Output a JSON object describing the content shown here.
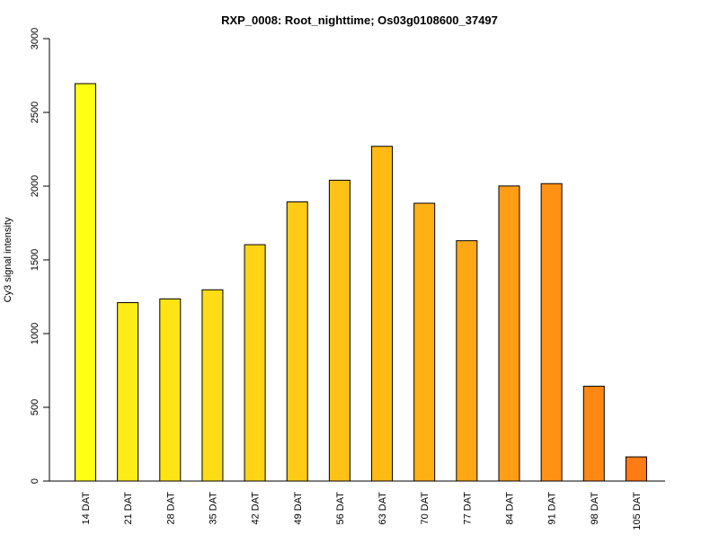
{
  "chart_data": {
    "type": "bar",
    "title": "RXP_0008: Root_nighttime; Os03g0108600_37497",
    "xlabel": "",
    "ylabel": "Cy3 signal intensity",
    "ylim": [
      0,
      3000
    ],
    "yticks": [
      "0",
      "500",
      "1000",
      "1500",
      "2000",
      "2500",
      "3000"
    ],
    "categories": [
      "14 DAT",
      "21 DAT",
      "28 DAT",
      "35 DAT",
      "42 DAT",
      "49 DAT",
      "56 DAT",
      "63 DAT",
      "70 DAT",
      "77 DAT",
      "84 DAT",
      "91 DAT",
      "98 DAT",
      "105 DAT"
    ],
    "values": [
      2695,
      1210,
      1235,
      1297,
      1603,
      1893,
      2040,
      2270,
      1884,
      1630,
      2001,
      2017,
      643,
      164
    ],
    "colors": [
      "#FFFF14",
      "#FFEC14",
      "#FFE414",
      "#FFDC14",
      "#FFD414",
      "#FFCB14",
      "#FFC214",
      "#FFBA14",
      "#FFB114",
      "#FFA814",
      "#FF9E14",
      "#FF9214",
      "#FF8714",
      "#FF7B14"
    ],
    "grid": false,
    "legend": "none"
  }
}
